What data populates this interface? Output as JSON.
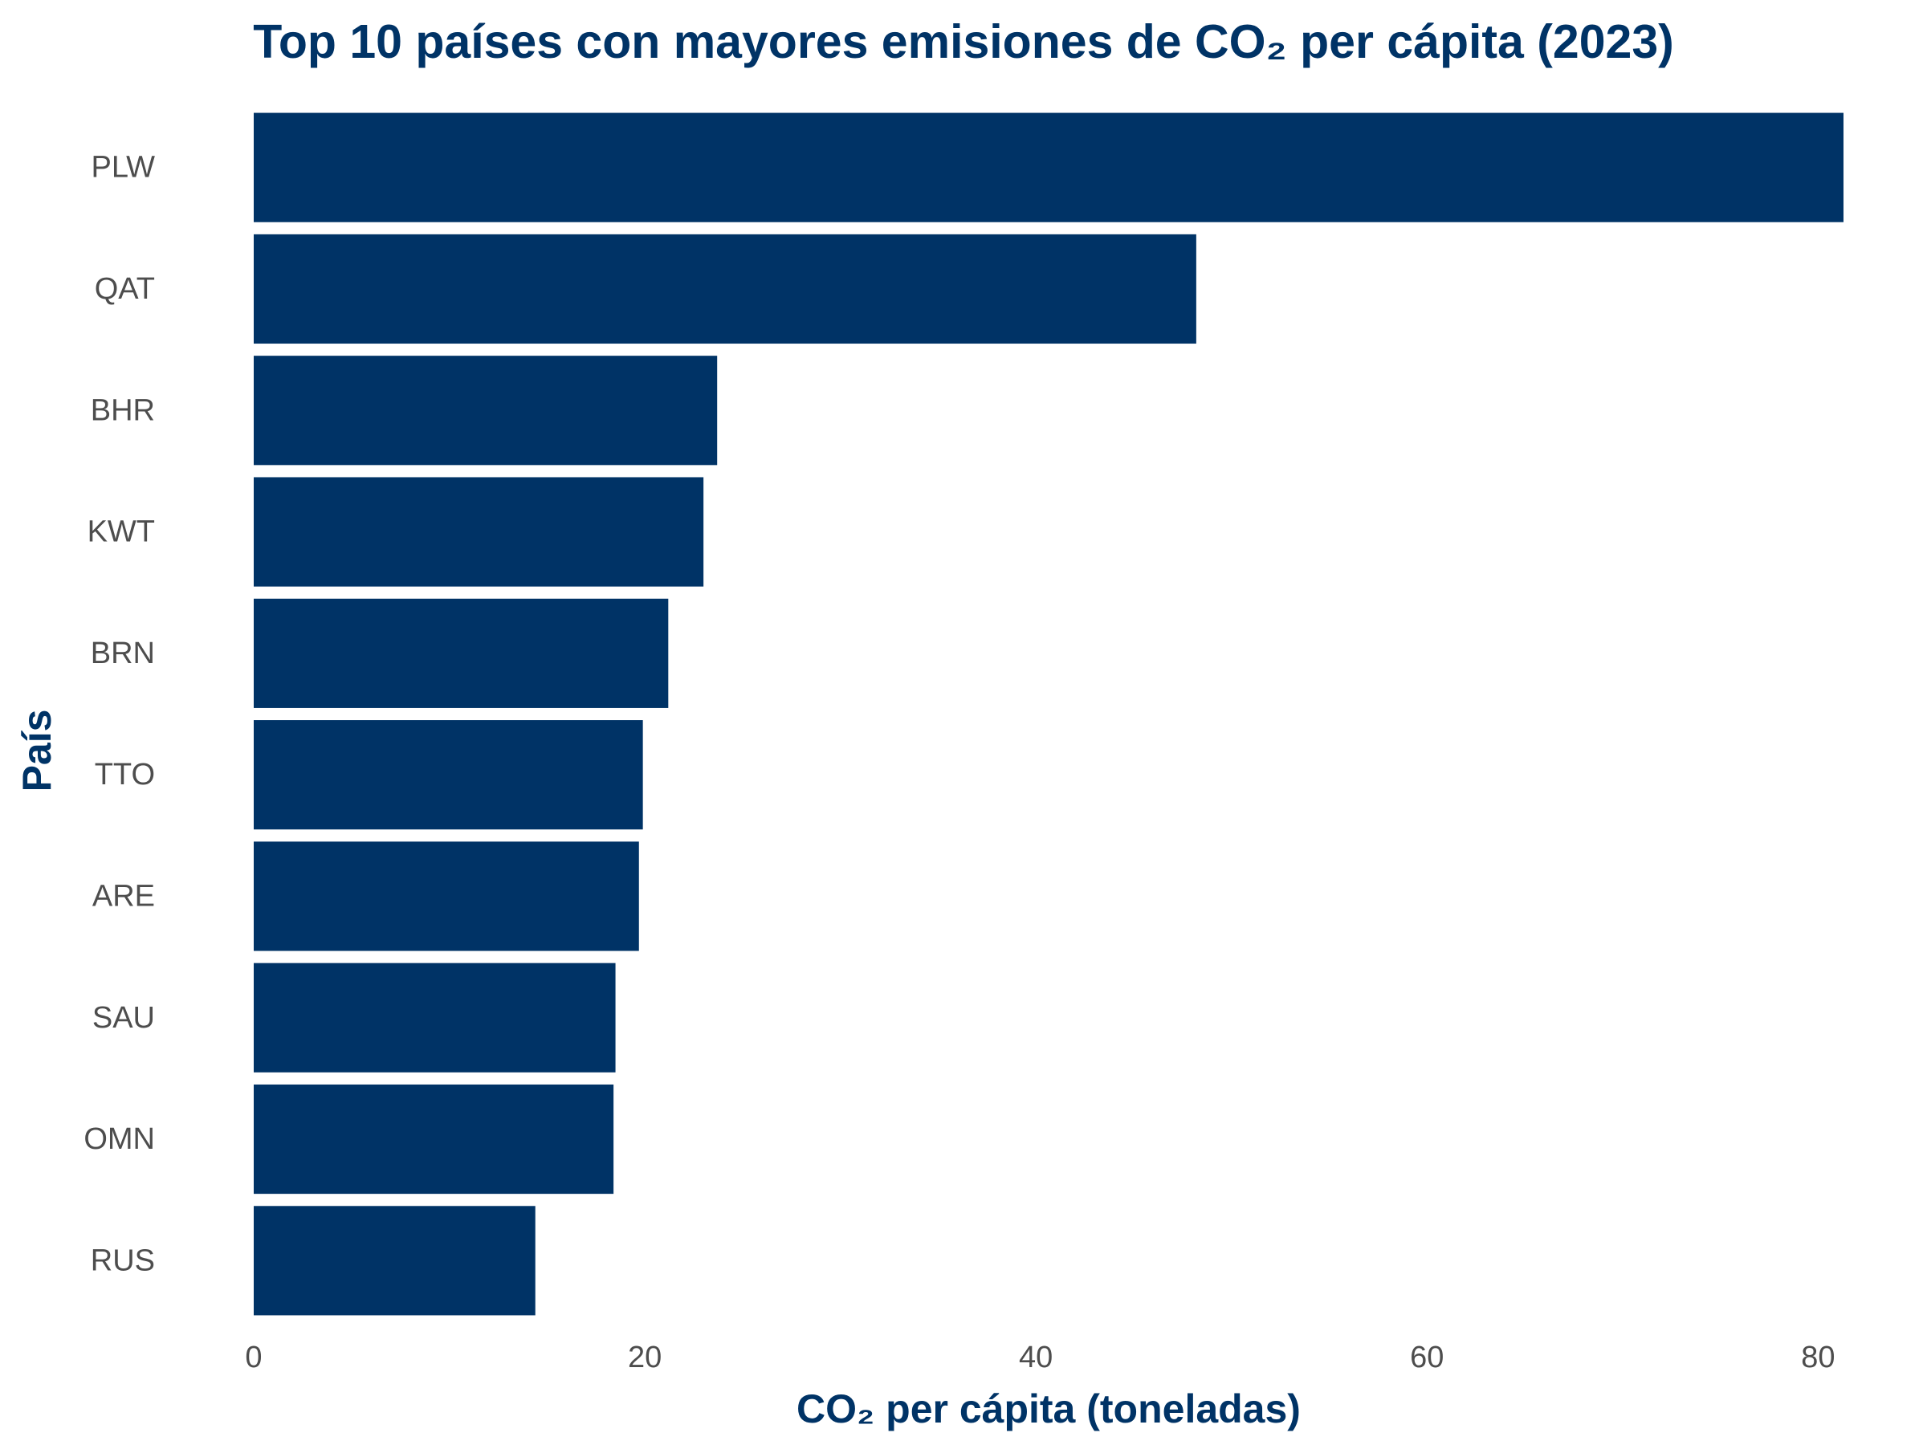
{
  "chart_data": {
    "type": "bar",
    "orientation": "horizontal",
    "title": "Top 10 países con mayores emisiones de CO₂ per cápita (2023)",
    "xlabel": "CO₂ per cápita (toneladas)",
    "ylabel": "País",
    "categories": [
      "PLW",
      "QAT",
      "BHR",
      "KWT",
      "BRN",
      "TTO",
      "ARE",
      "SAU",
      "OMN",
      "RUS"
    ],
    "values": [
      81.3,
      48.2,
      23.7,
      23.0,
      21.2,
      19.9,
      19.7,
      18.5,
      18.4,
      14.4
    ],
    "xlim": [
      0,
      81.3
    ],
    "xticks": [
      0,
      20,
      40,
      60,
      80
    ],
    "grid": false,
    "bar_color": "#003366",
    "text_color": "#003366",
    "tick_color": "#4d4d4d"
  }
}
